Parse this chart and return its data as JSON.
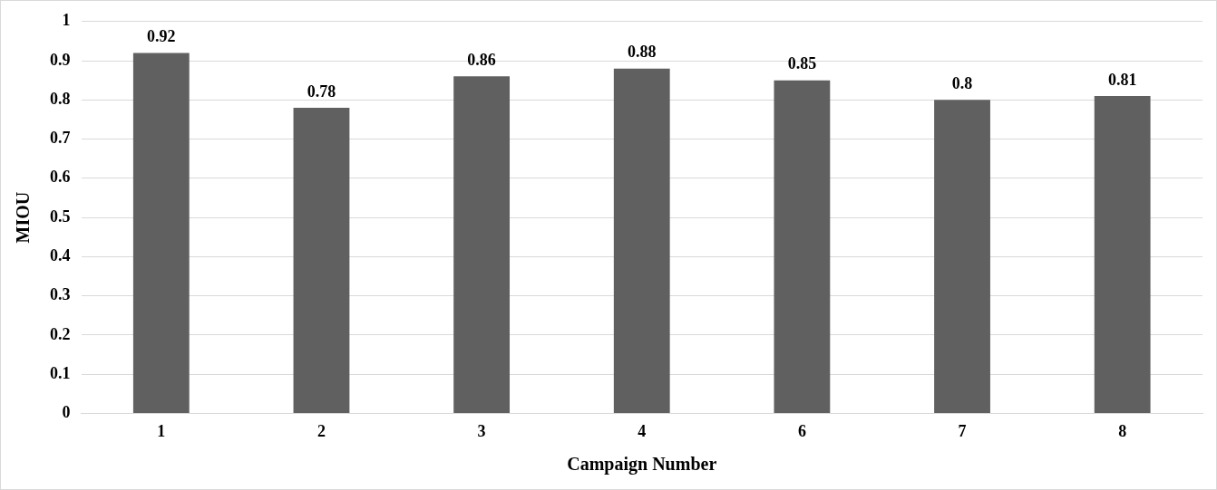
{
  "chart_data": {
    "type": "bar",
    "xlabel": "Campaign Number",
    "ylabel": "MIOU",
    "categories": [
      "1",
      "2",
      "3",
      "4",
      "6",
      "7",
      "8"
    ],
    "values": [
      0.92,
      0.78,
      0.86,
      0.88,
      0.85,
      0.8,
      0.81
    ],
    "color": "#606060",
    "ylim": [
      0,
      1
    ],
    "yticks": [
      0,
      0.1,
      0.2,
      0.3,
      0.4,
      0.5,
      0.6,
      0.7,
      0.8,
      0.9,
      1
    ],
    "grid": "y",
    "legend": false,
    "data_labels": true
  }
}
